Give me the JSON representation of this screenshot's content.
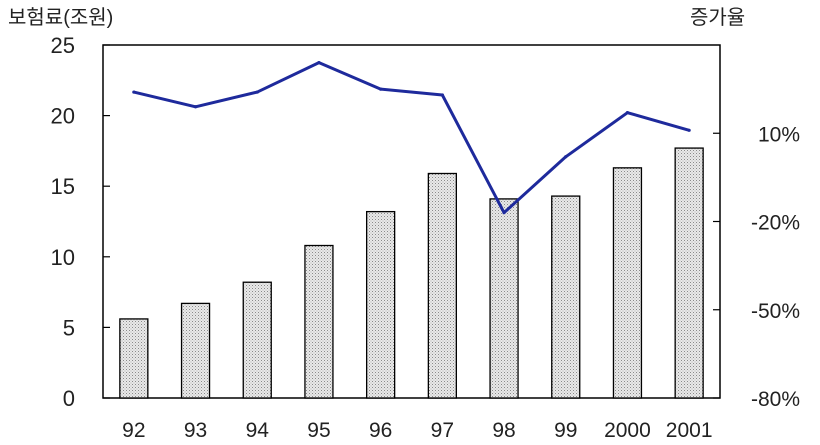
{
  "chart_data": {
    "type": "bar+line",
    "left_axis_label": "보험료(조원)",
    "right_axis_label": "증가율",
    "categories": [
      "92",
      "93",
      "94",
      "95",
      "96",
      "97",
      "98",
      "99",
      "2000",
      "2001"
    ],
    "left_ylim": [
      0,
      25
    ],
    "left_ticks": [
      "0",
      "5",
      "10",
      "15",
      "20",
      "25"
    ],
    "right_ylim": [
      -80,
      40
    ],
    "right_ticks": [
      "-80%",
      "-50%",
      "-20%",
      "10%"
    ],
    "grid": false,
    "series": [
      {
        "kind": "bar",
        "axis": "left",
        "values": [
          5.6,
          6.7,
          8.2,
          10.8,
          13.2,
          15.9,
          14.1,
          14.3,
          16.3,
          17.7
        ]
      },
      {
        "kind": "line",
        "axis": "right",
        "values": [
          24,
          19,
          24,
          34,
          25,
          23,
          -17,
          2,
          17,
          11
        ]
      }
    ],
    "colors": {
      "bar_fill": "#d4d4d4",
      "bar_stroke": "#000000",
      "line": "#1e2a9c",
      "axis": "#000000"
    }
  }
}
